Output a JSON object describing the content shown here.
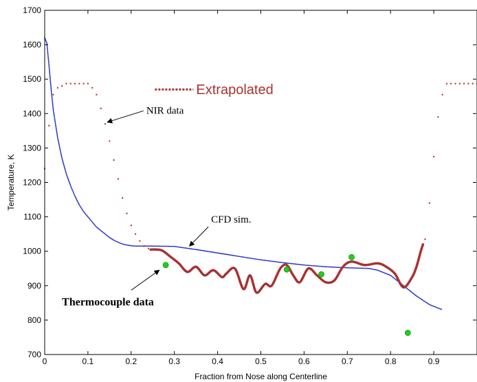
{
  "chart_data": {
    "type": "line",
    "xlabel": "Fraction from Nose along Centerline",
    "ylabel": "Temperature, K",
    "xlim": [
      0,
      1.0
    ],
    "ylim": [
      700,
      1700
    ],
    "x_ticks": [
      "0",
      "0.1",
      "0.2",
      "0.3",
      "0.4",
      "0.5",
      "0.6",
      "0.7",
      "0.8",
      "0.9"
    ],
    "y_ticks": [
      "700",
      "800",
      "900",
      "1000",
      "1100",
      "1200",
      "1300",
      "1400",
      "1500",
      "1600",
      "1700"
    ],
    "grid": false,
    "legend": {
      "position": "top-right",
      "entries": [
        {
          "label": "Extrapolated",
          "color": "#a83232"
        }
      ]
    },
    "colors": {
      "cfd": "#1f2fbf",
      "nir": "#b22222",
      "extrapolated": "#a83232",
      "thermocouple": "#22cc22"
    },
    "annotations": [
      {
        "text": "NIR data",
        "x": 0.235,
        "y": 1400,
        "arrow_to": [
          0.145,
          1375
        ]
      },
      {
        "text": "CFD sim.",
        "x": 0.385,
        "y": 1083,
        "arrow_to": [
          0.335,
          1015
        ]
      },
      {
        "text": "Thermocouple data",
        "x": 0.04,
        "y": 843,
        "arrow_to": [
          0.265,
          945
        ]
      }
    ],
    "series": [
      {
        "kind": "dotted-line",
        "x": [
          0.0,
          0.005,
          0.01,
          0.015,
          0.02,
          0.03,
          0.04,
          0.05,
          0.06,
          0.07,
          0.08,
          0.09,
          0.1,
          0.11,
          0.12,
          0.13,
          0.14,
          0.15,
          0.16,
          0.17,
          0.18,
          0.19,
          0.2,
          0.21,
          0.22,
          0.23,
          0.25,
          0.3,
          0.35,
          0.4,
          0.45,
          0.5,
          0.55,
          0.6,
          0.65,
          0.7,
          0.75,
          0.77,
          0.8,
          0.83,
          0.86,
          0.89,
          0.92
        ],
        "y": [
          1620,
          1605,
          1540,
          1470,
          1410,
          1330,
          1270,
          1225,
          1190,
          1160,
          1135,
          1115,
          1100,
          1085,
          1070,
          1060,
          1050,
          1040,
          1032,
          1026,
          1021,
          1018,
          1016,
          1015,
          1015,
          1015,
          1015,
          1014,
          1005,
          995,
          985,
          975,
          967,
          960,
          955,
          952,
          950,
          945,
          930,
          900,
          870,
          845,
          830
        ]
      },
      {
        "kind": "sparse-markers",
        "x": [
          0.0,
          0.01,
          0.02,
          0.03,
          0.04,
          0.05,
          0.06,
          0.07,
          0.08,
          0.09,
          0.1,
          0.11,
          0.12,
          0.13,
          0.14,
          0.15,
          0.16,
          0.17,
          0.18,
          0.19,
          0.2,
          0.21,
          0.22,
          0.23,
          0.24,
          0.88,
          0.89,
          0.9,
          0.91,
          0.92,
          0.93,
          0.94,
          0.95,
          0.96,
          0.97,
          0.98,
          0.99,
          1.0
        ],
        "y": [
          1240,
          1365,
          1455,
          1475,
          1480,
          1487,
          1487,
          1487,
          1487,
          1487,
          1487,
          1475,
          1455,
          1415,
          1370,
          1320,
          1265,
          1210,
          1155,
          1110,
          1075,
          1050,
          1030,
          1015,
          1008,
          1035,
          1140,
          1275,
          1390,
          1455,
          1487,
          1487,
          1487,
          1487,
          1487,
          1487,
          1487,
          1487
        ]
      },
      {
        "kind": "thick-line",
        "x": [
          0.245,
          0.27,
          0.29,
          0.31,
          0.33,
          0.35,
          0.37,
          0.39,
          0.41,
          0.42,
          0.44,
          0.46,
          0.475,
          0.49,
          0.51,
          0.525,
          0.545,
          0.56,
          0.575,
          0.59,
          0.61,
          0.63,
          0.65,
          0.67,
          0.69,
          0.71,
          0.74,
          0.77,
          0.79,
          0.81,
          0.83,
          0.85,
          0.86,
          0.87,
          0.875
        ],
        "y": [
          1005,
          1003,
          985,
          965,
          940,
          955,
          930,
          945,
          925,
          935,
          950,
          890,
          930,
          880,
          905,
          900,
          950,
          960,
          930,
          910,
          950,
          930,
          910,
          915,
          955,
          970,
          960,
          965,
          955,
          935,
          895,
          925,
          955,
          1000,
          1020
        ]
      },
      {
        "kind": "markers",
        "x": [
          0.28,
          0.56,
          0.64,
          0.71,
          0.84
        ],
        "y": [
          960,
          947,
          933,
          983,
          763
        ]
      }
    ]
  }
}
